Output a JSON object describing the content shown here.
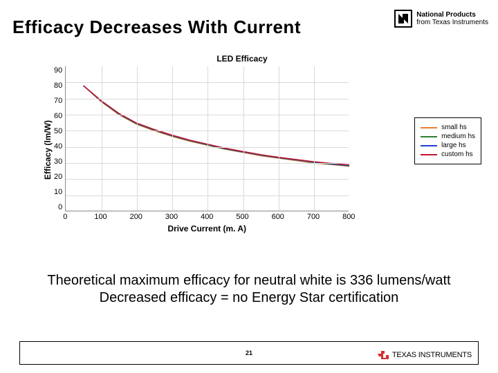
{
  "title": "Efficacy Decreases With Current",
  "brand": {
    "line1": "National Products",
    "line2": "from Texas Instruments"
  },
  "chart": {
    "type": "line",
    "title": "LED Efficacy",
    "xlabel": "Drive Current (m. A)",
    "ylabel": "Efficacy (lm/W)",
    "xlim": [
      0,
      800
    ],
    "ylim": [
      0,
      90
    ],
    "xtick_step": 100,
    "ytick_step": 10,
    "grid_color": "#d9d9d9",
    "axis_color": "#888888",
    "background_color": "#ffffff",
    "title_fontsize": 12,
    "label_fontsize": 12,
    "tick_fontsize": 11,
    "line_width": 1.5,
    "series": [
      {
        "name": "small hs",
        "color": "#ed7d31",
        "x": [
          50,
          100,
          150,
          200,
          250,
          300,
          350,
          400,
          450,
          500,
          550,
          600,
          650,
          700,
          750,
          800
        ],
        "y": [
          78,
          68,
          60,
          54,
          50,
          46.5,
          43.5,
          41,
          38.5,
          36.5,
          34.5,
          33,
          31.5,
          30,
          29,
          28
        ]
      },
      {
        "name": "medium hs",
        "color": "#2e7d32",
        "x": [
          50,
          100,
          150,
          200,
          250,
          300,
          350,
          400,
          450,
          500,
          550,
          600,
          650,
          700,
          750,
          800
        ],
        "y": [
          78,
          68.3,
          60.3,
          54.3,
          50.3,
          46.8,
          43.8,
          41.2,
          38.7,
          36.8,
          34.8,
          33.2,
          31.8,
          30.3,
          29.2,
          28.2
        ]
      },
      {
        "name": "large hs",
        "color": "#1f3fd1",
        "x": [
          50,
          100,
          150,
          200,
          250,
          300,
          350,
          400,
          450,
          500,
          550,
          600,
          650,
          700,
          750,
          800
        ],
        "y": [
          78,
          68.5,
          60.6,
          54.6,
          50.6,
          47.1,
          44.0,
          41.5,
          39.0,
          37.0,
          35.0,
          33.4,
          32.0,
          30.6,
          29.5,
          28.5
        ]
      },
      {
        "name": "custom hs",
        "color": "#c0152f",
        "x": [
          50,
          100,
          150,
          200,
          250,
          300,
          350,
          400,
          450,
          500,
          550,
          600,
          650,
          700,
          750,
          800
        ],
        "y": [
          78,
          68.7,
          60.8,
          54.8,
          50.8,
          47.3,
          44.2,
          41.7,
          39.2,
          37.2,
          35.2,
          33.6,
          32.2,
          30.8,
          29.8,
          28.8
        ]
      }
    ]
  },
  "body_line1": "Theoretical maximum efficacy for neutral white is 336 lumens/watt",
  "body_line2": "Decreased efficacy = no Energy Star certification",
  "footer": {
    "page": "21",
    "ti": "TEXAS INSTRUMENTS"
  }
}
